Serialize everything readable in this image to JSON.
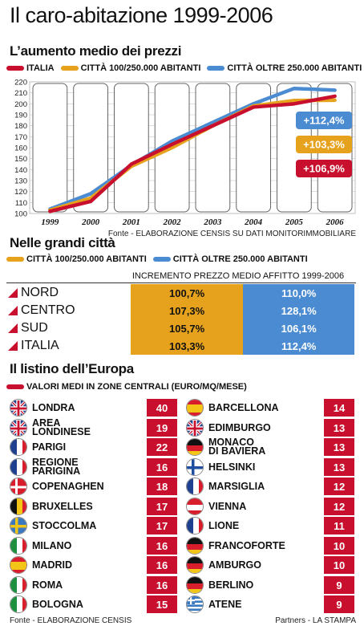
{
  "title": "Il caro-abitazione 1999-2006",
  "section1": {
    "title": "L’aumento medio dei prezzi",
    "legend": [
      {
        "label": "ITALIA",
        "color": "#c8102e"
      },
      {
        "label": "CITTÀ 100/250.000 ABITANTI",
        "color": "#e6a21c"
      },
      {
        "label": "CITTÀ OLTRE 250.000 ABITANTI",
        "color": "#4b8bd1"
      }
    ],
    "source": "Fonte - ELABORAZIONE CENSIS SU DATI MONITORIMMOBILIARE"
  },
  "chart_data": {
    "type": "line",
    "x": [
      "1999",
      "2000",
      "2001",
      "2002",
      "2003",
      "2004",
      "2005",
      "2006"
    ],
    "ylim": [
      100,
      220
    ],
    "yticks": [
      100,
      110,
      120,
      130,
      140,
      150,
      160,
      170,
      180,
      190,
      200,
      210,
      220
    ],
    "grid": true,
    "series": [
      {
        "name": "ITALIA",
        "color": "#c8102e",
        "values": [
          102,
          111,
          145,
          163,
          180,
          197,
          200,
          206.9
        ],
        "end_label": "+106,9%"
      },
      {
        "name": "CITTÀ 100/250.000 ABITANTI",
        "color": "#e6a21c",
        "values": [
          103,
          114,
          143,
          160,
          180,
          198,
          203,
          203.3
        ],
        "end_label": "+103,3%"
      },
      {
        "name": "CITTÀ OLTRE 250.000 ABITANTI",
        "color": "#4b8bd1",
        "values": [
          104,
          118,
          144,
          166,
          183,
          200,
          214,
          212.4
        ],
        "end_label": "+112,4%"
      }
    ]
  },
  "section2": {
    "title": "Nelle grandi città",
    "legend": [
      {
        "label": "CITTÀ 100/250.000 ABITANTI",
        "color": "#e6a21c"
      },
      {
        "label": "CITTÀ OLTRE 250.000 ABITANTI",
        "color": "#4b8bd1"
      }
    ],
    "table_header": "INCREMENTO PREZZO MEDIO AFFITTO 1999-2006",
    "rows": [
      {
        "region": "NORD",
        "a": "100,7%",
        "b": "110,0%"
      },
      {
        "region": "CENTRO",
        "a": "107,3%",
        "b": "128,1%"
      },
      {
        "region": "SUD",
        "a": "105,7%",
        "b": "106,1%"
      },
      {
        "region": "ITALIA",
        "a": "103,3%",
        "b": "112,4%"
      }
    ]
  },
  "section3": {
    "title": "Il listino dell’Europa",
    "legend_label": "VALORI MEDI IN ZONE CENTRALI (EURO/MQ/MESE)",
    "left": [
      {
        "city": "LONDRA",
        "value": "40",
        "flag": "uk-flag-icon"
      },
      {
        "city": "AREA\nLONDINESE",
        "value": "19",
        "flag": "uk-flag-icon"
      },
      {
        "city": "PARIGI",
        "value": "22",
        "flag": "france-flag-icon"
      },
      {
        "city": "REGIONE\nPARIGINA",
        "value": "16",
        "flag": "france-flag-icon"
      },
      {
        "city": "COPENAGHEN",
        "value": "18",
        "flag": "denmark-flag-icon"
      },
      {
        "city": "BRUXELLES",
        "value": "17",
        "flag": "belgium-flag-icon"
      },
      {
        "city": "STOCCOLMA",
        "value": "17",
        "flag": "sweden-flag-icon"
      },
      {
        "city": "MILANO",
        "value": "16",
        "flag": "italy-flag-icon"
      },
      {
        "city": "MADRID",
        "value": "16",
        "flag": "spain-flag-icon"
      },
      {
        "city": "ROMA",
        "value": "16",
        "flag": "italy-flag-icon"
      },
      {
        "city": "BOLOGNA",
        "value": "15",
        "flag": "italy-flag-icon"
      }
    ],
    "right": [
      {
        "city": "BARCELLONA",
        "value": "14",
        "flag": "spain-flag-icon"
      },
      {
        "city": "EDIMBURGO",
        "value": "13",
        "flag": "uk-flag-icon"
      },
      {
        "city": "MONACO\nDI BAVIERA",
        "value": "13",
        "flag": "germany-flag-icon"
      },
      {
        "city": "HELSINKI",
        "value": "13",
        "flag": "finland-flag-icon"
      },
      {
        "city": "MARSIGLIA",
        "value": "12",
        "flag": "france-flag-icon"
      },
      {
        "city": "VIENNA",
        "value": "12",
        "flag": "austria-flag-icon"
      },
      {
        "city": "LIONE",
        "value": "11",
        "flag": "france-flag-icon"
      },
      {
        "city": "FRANCOFORTE",
        "value": "10",
        "flag": "germany-flag-icon"
      },
      {
        "city": "AMBURGO",
        "value": "10",
        "flag": "germany-flag-icon"
      },
      {
        "city": "BERLINO",
        "value": "9",
        "flag": "germany-flag-icon"
      },
      {
        "city": "ATENE",
        "value": "9",
        "flag": "greece-flag-icon"
      }
    ],
    "source": "Fonte - ELABORAZIONE CENSIS",
    "credit": "Partners - LA STAMPA"
  }
}
